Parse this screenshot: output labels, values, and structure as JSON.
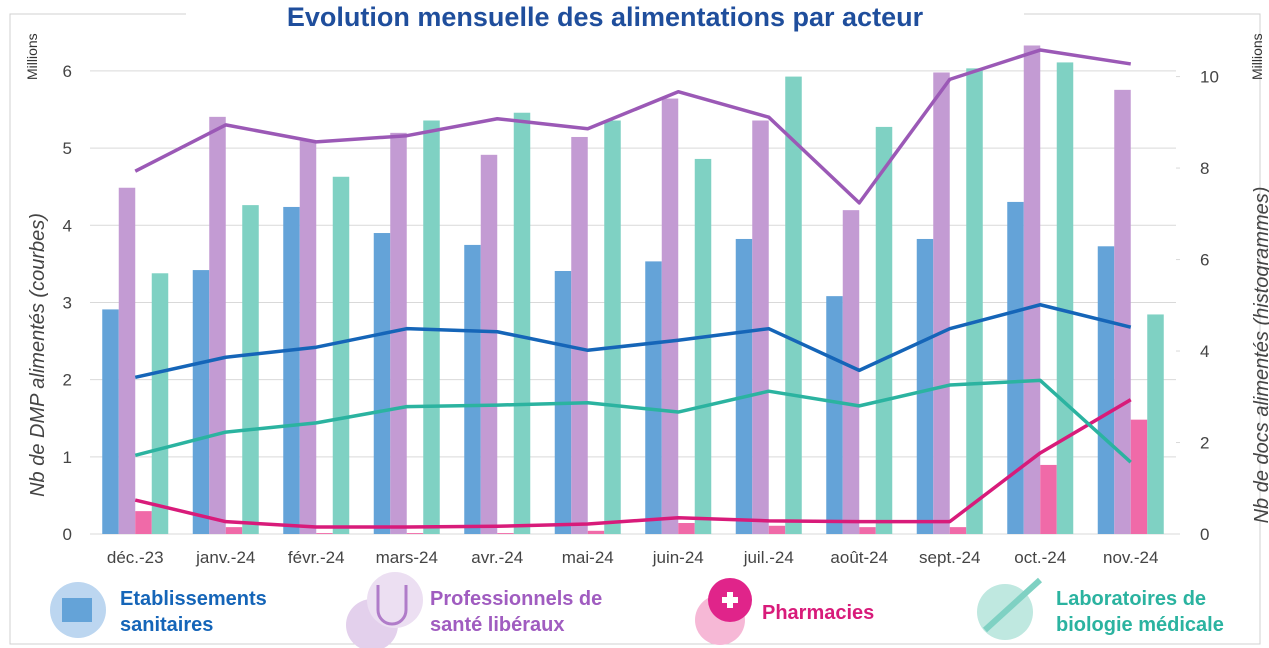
{
  "chart_data": {
    "type": "combo",
    "title": "Evolution mensuelle des alimentations par acteur",
    "y_label": "Nb de DMP alimentés (courbes)",
    "y2_label": "Nb de docs alimentés (histogrammes)",
    "y_unit": "Millions",
    "y2_unit": "Millions",
    "categories": [
      "déc.-23",
      "janv.-24",
      "févr.-24",
      "mars-24",
      "avr.-24",
      "mai-24",
      "juin-24",
      "juil.-24",
      "août-24",
      "sept.-24",
      "oct.-24",
      "nov.-24"
    ],
    "ylim": [
      0,
      6.4
    ],
    "yticks": [
      0,
      1,
      2,
      3,
      4,
      5,
      6
    ],
    "y2lim": [
      0,
      10.8
    ],
    "y2ticks": [
      0,
      2,
      4,
      6,
      8,
      10
    ],
    "series": [
      {
        "name": "Etablissements sanitaires",
        "color": "#1565b8",
        "values": [
          2.03,
          2.29,
          2.42,
          2.66,
          2.62,
          2.38,
          2.51,
          2.66,
          2.12,
          2.66,
          2.97,
          2.68
        ],
        "bar_color": "#64a3d8",
        "bar_axis": "y2",
        "bar_values": [
          4.91,
          5.77,
          7.15,
          6.58,
          6.32,
          5.75,
          5.96,
          6.45,
          5.2,
          6.45,
          7.26,
          6.29
        ]
      },
      {
        "name": "Professionnels de santé libéraux",
        "color": "#9b59b6",
        "values": [
          4.7,
          5.3,
          5.08,
          5.16,
          5.38,
          5.25,
          5.73,
          5.4,
          4.29,
          5.89,
          6.27,
          6.09
        ],
        "bar_color": "#c39bd3",
        "bar_axis": "y2",
        "bar_values": [
          7.57,
          9.12,
          8.6,
          8.77,
          8.29,
          8.68,
          9.52,
          9.04,
          7.08,
          10.09,
          10.68,
          9.71
        ]
      },
      {
        "name": "Pharmacies",
        "color": "#d81b7a",
        "values": [
          0.44,
          0.16,
          0.09,
          0.09,
          0.1,
          0.13,
          0.21,
          0.17,
          0.16,
          0.16,
          1.05,
          1.74
        ],
        "bar_color": "#f06aa8",
        "bar_axis": "y2",
        "bar_values": [
          0.5,
          0.15,
          0.02,
          0.02,
          0.02,
          0.07,
          0.24,
          0.18,
          0.15,
          0.15,
          1.51,
          2.5
        ]
      },
      {
        "name": "Laboratoires de biologie médicale",
        "color": "#2bb3a0",
        "values": [
          1.02,
          1.32,
          1.44,
          1.65,
          1.67,
          1.7,
          1.58,
          1.85,
          1.66,
          1.93,
          1.99,
          0.93
        ],
        "bar_color": "#7fd1c3",
        "bar_axis": "y2",
        "bar_values": [
          5.7,
          7.19,
          7.81,
          9.04,
          9.21,
          9.04,
          8.2,
          10.0,
          8.9,
          10.18,
          10.31,
          4.8
        ]
      }
    ],
    "grid": true
  }
}
